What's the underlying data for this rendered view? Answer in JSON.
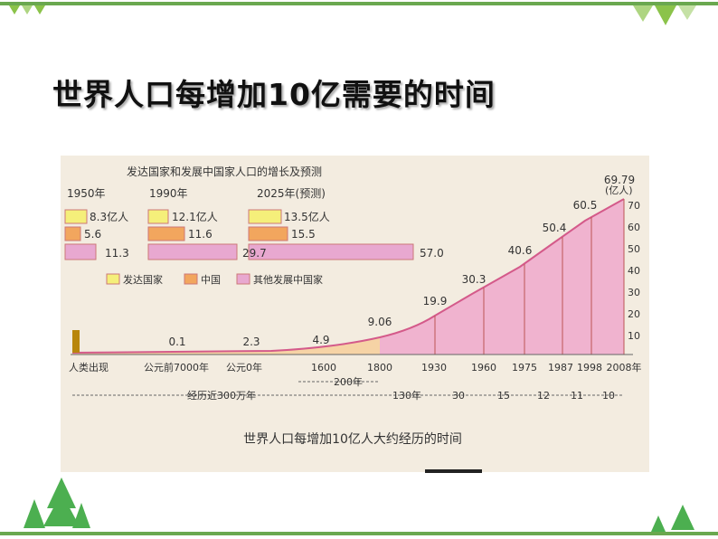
{
  "title": "世界人口每增加10亿需要的时间",
  "figure": {
    "inset": {
      "title": "发达国家和发展中国家人口的增长及预测",
      "groups": [
        {
          "year": "1950年",
          "values": [
            "8.3亿人",
            "5.6",
            "11.3"
          ]
        },
        {
          "year": "1990年",
          "values": [
            "12.1亿人",
            "11.6",
            "29.7"
          ]
        },
        {
          "year": "2025年(预测)",
          "values": [
            "13.5亿人",
            "15.5",
            "57.0"
          ]
        }
      ],
      "legend": [
        "发达国家",
        "中国",
        "其他发展中国家"
      ]
    },
    "unit": "(亿人)",
    "axis_ticks": [
      "70",
      "60",
      "50",
      "40",
      "30",
      "20",
      "10"
    ],
    "timeline": [
      "人类出现",
      "公元前7000年",
      "公元0年",
      "1600",
      "1800",
      "1930",
      "1960",
      "1975",
      "1987",
      "1998",
      "2008年"
    ],
    "values": [
      "0.1",
      "2.3",
      "4.9",
      "9.06",
      "19.9",
      "30.3",
      "40.6",
      "50.4",
      "60.5",
      "69.79"
    ],
    "spans": [
      "200年",
      "经历近300万年",
      "130年",
      "30",
      "15",
      "12",
      "11",
      "10"
    ],
    "caption": "世界人口每增加10亿人大约经历的时间"
  }
}
